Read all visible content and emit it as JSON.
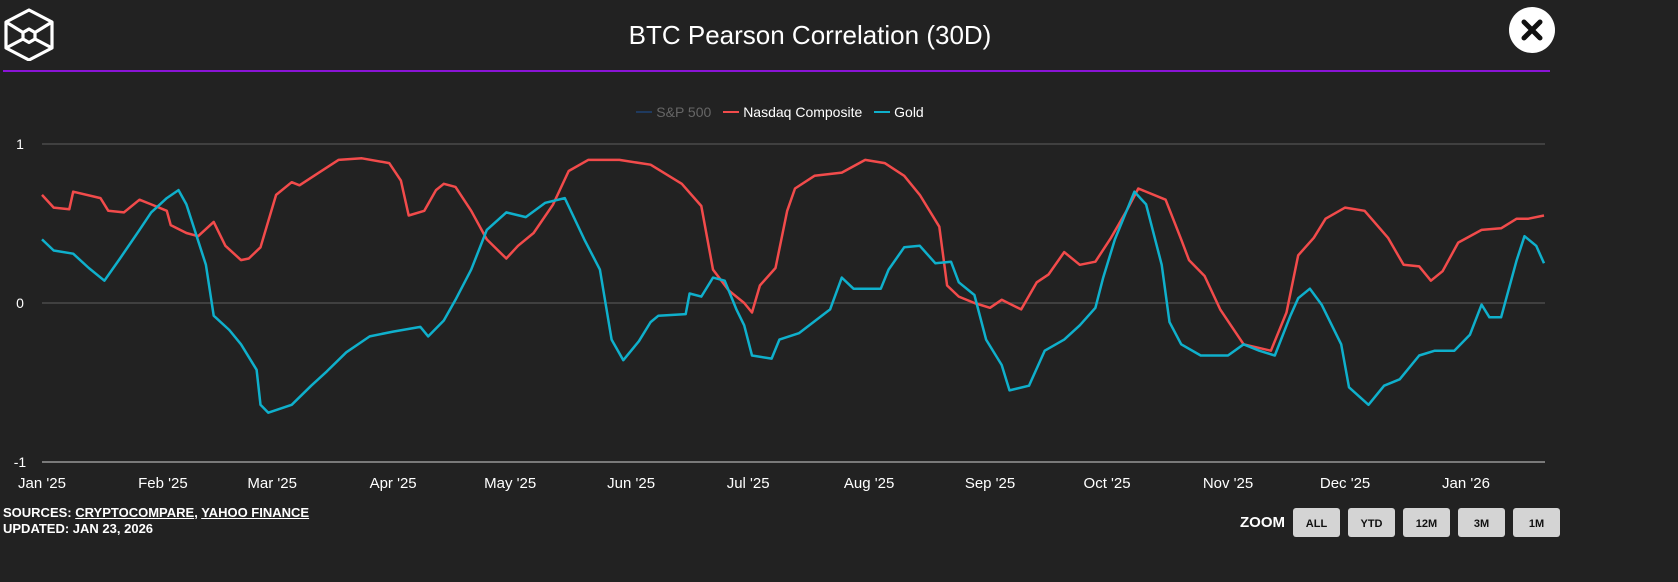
{
  "header": {
    "title": "BTC Pearson Correlation (30D)",
    "logo": "cube-logo",
    "close_icon": "close-icon"
  },
  "footer": {
    "sources_label": "SOURCES:",
    "source_1": "CRYPTOCOMPARE",
    "separator": ",",
    "source_2": "YAHOO FINANCE",
    "updated": "UPDATED: JAN 23, 2026"
  },
  "zoom": {
    "label": "ZOOM",
    "buttons": [
      "ALL",
      "YTD",
      "12M",
      "3M",
      "1M"
    ]
  },
  "colors": {
    "background": "#222222",
    "divider": "#8a14d6",
    "sp500": "#1f3a5f",
    "nasdaq": "#f24b4b",
    "gold": "#0fb0cc",
    "grid": "#444444"
  },
  "chart_data": {
    "type": "line",
    "title": "BTC Pearson Correlation (30D)",
    "xlabel": "",
    "ylabel": "",
    "ylim": [
      -1,
      1
    ],
    "xlim": [
      "2025-01-01",
      "2026-01-21"
    ],
    "grid": true,
    "legend_placement": "top",
    "y_ticks": [
      "1",
      "0",
      "-1"
    ],
    "x_ticks": [
      "Jan '25",
      "Feb '25",
      "Mar '25",
      "Apr '25",
      "May '25",
      "Jun '25",
      "Jul '25",
      "Aug '25",
      "Sep '25",
      "Oct '25",
      "Nov '25",
      "Dec '25",
      "Jan '26"
    ],
    "x_tick_dates": [
      "2025-01-01",
      "2025-02-01",
      "2025-03-01",
      "2025-04-01",
      "2025-05-01",
      "2025-06-01",
      "2025-07-01",
      "2025-08-01",
      "2025-09-01",
      "2025-10-01",
      "2025-11-01",
      "2025-12-01",
      "2026-01-01"
    ],
    "series": [
      {
        "name": "S&P 500",
        "visible": false,
        "points": []
      },
      {
        "name": "Nasdaq Composite",
        "visible": true,
        "points": [
          [
            "2025-01-01",
            0.68
          ],
          [
            "2025-01-04",
            0.6
          ],
          [
            "2025-01-08",
            0.59
          ],
          [
            "2025-01-09",
            0.7
          ],
          [
            "2025-01-16",
            0.66
          ],
          [
            "2025-01-18",
            0.58
          ],
          [
            "2025-01-22",
            0.57
          ],
          [
            "2025-01-26",
            0.65
          ],
          [
            "2025-01-29",
            0.62
          ],
          [
            "2025-02-02",
            0.58
          ],
          [
            "2025-02-03",
            0.49
          ],
          [
            "2025-02-07",
            0.44
          ],
          [
            "2025-02-10",
            0.42
          ],
          [
            "2025-02-14",
            0.51
          ],
          [
            "2025-02-17",
            0.36
          ],
          [
            "2025-02-21",
            0.27
          ],
          [
            "2025-02-23",
            0.28
          ],
          [
            "2025-02-26",
            0.35
          ],
          [
            "2025-03-02",
            0.68
          ],
          [
            "2025-03-06",
            0.76
          ],
          [
            "2025-03-08",
            0.74
          ],
          [
            "2025-03-13",
            0.82
          ],
          [
            "2025-03-18",
            0.9
          ],
          [
            "2025-03-24",
            0.91
          ],
          [
            "2025-03-31",
            0.88
          ],
          [
            "2025-04-03",
            0.77
          ],
          [
            "2025-04-05",
            0.55
          ],
          [
            "2025-04-09",
            0.58
          ],
          [
            "2025-04-12",
            0.71
          ],
          [
            "2025-04-14",
            0.75
          ],
          [
            "2025-04-17",
            0.73
          ],
          [
            "2025-04-21",
            0.58
          ],
          [
            "2025-04-25",
            0.4
          ],
          [
            "2025-04-30",
            0.28
          ],
          [
            "2025-05-03",
            0.36
          ],
          [
            "2025-05-07",
            0.44
          ],
          [
            "2025-05-12",
            0.62
          ],
          [
            "2025-05-16",
            0.83
          ],
          [
            "2025-05-21",
            0.9
          ],
          [
            "2025-05-29",
            0.9
          ],
          [
            "2025-06-06",
            0.87
          ],
          [
            "2025-06-14",
            0.75
          ],
          [
            "2025-06-19",
            0.61
          ],
          [
            "2025-06-22",
            0.21
          ],
          [
            "2025-06-26",
            0.08
          ],
          [
            "2025-06-30",
            0.0
          ],
          [
            "2025-07-02",
            -0.06
          ],
          [
            "2025-07-04",
            0.11
          ],
          [
            "2025-07-08",
            0.22
          ],
          [
            "2025-07-11",
            0.58
          ],
          [
            "2025-07-13",
            0.72
          ],
          [
            "2025-07-18",
            0.8
          ],
          [
            "2025-07-25",
            0.82
          ],
          [
            "2025-07-31",
            0.9
          ],
          [
            "2025-08-05",
            0.88
          ],
          [
            "2025-08-10",
            0.8
          ],
          [
            "2025-08-14",
            0.68
          ],
          [
            "2025-08-19",
            0.48
          ],
          [
            "2025-08-21",
            0.11
          ],
          [
            "2025-08-24",
            0.04
          ],
          [
            "2025-08-28",
            0.0
          ],
          [
            "2025-09-01",
            -0.03
          ],
          [
            "2025-09-04",
            0.02
          ],
          [
            "2025-09-09",
            -0.04
          ],
          [
            "2025-09-13",
            0.13
          ],
          [
            "2025-09-16",
            0.18
          ],
          [
            "2025-09-20",
            0.32
          ],
          [
            "2025-09-24",
            0.24
          ],
          [
            "2025-09-28",
            0.26
          ],
          [
            "2025-10-02",
            0.41
          ],
          [
            "2025-10-06",
            0.58
          ],
          [
            "2025-10-09",
            0.72
          ],
          [
            "2025-10-16",
            0.65
          ],
          [
            "2025-10-20",
            0.4
          ],
          [
            "2025-10-22",
            0.27
          ],
          [
            "2025-10-26",
            0.17
          ],
          [
            "2025-10-30",
            -0.04
          ],
          [
            "2025-11-05",
            -0.26
          ],
          [
            "2025-11-12",
            -0.3
          ],
          [
            "2025-11-16",
            -0.06
          ],
          [
            "2025-11-19",
            0.3
          ],
          [
            "2025-11-23",
            0.41
          ],
          [
            "2025-11-26",
            0.53
          ],
          [
            "2025-12-01",
            0.6
          ],
          [
            "2025-12-06",
            0.58
          ],
          [
            "2025-12-12",
            0.41
          ],
          [
            "2025-12-16",
            0.24
          ],
          [
            "2025-12-20",
            0.23
          ],
          [
            "2025-12-23",
            0.14
          ],
          [
            "2025-12-26",
            0.2
          ],
          [
            "2025-12-30",
            0.38
          ],
          [
            "2026-01-05",
            0.46
          ],
          [
            "2026-01-10",
            0.47
          ],
          [
            "2026-01-14",
            0.53
          ],
          [
            "2026-01-17",
            0.53
          ],
          [
            "2026-01-21",
            0.55
          ]
        ]
      },
      {
        "name": "Gold",
        "visible": true,
        "points": [
          [
            "2025-01-01",
            0.4
          ],
          [
            "2025-01-04",
            0.33
          ],
          [
            "2025-01-09",
            0.31
          ],
          [
            "2025-01-13",
            0.22
          ],
          [
            "2025-01-17",
            0.14
          ],
          [
            "2025-01-21",
            0.28
          ],
          [
            "2025-01-26",
            0.46
          ],
          [
            "2025-01-29",
            0.57
          ],
          [
            "2025-02-02",
            0.66
          ],
          [
            "2025-02-05",
            0.71
          ],
          [
            "2025-02-07",
            0.62
          ],
          [
            "2025-02-12",
            0.24
          ],
          [
            "2025-02-14",
            -0.08
          ],
          [
            "2025-02-18",
            -0.17
          ],
          [
            "2025-02-21",
            -0.26
          ],
          [
            "2025-02-25",
            -0.42
          ],
          [
            "2025-02-26",
            -0.64
          ],
          [
            "2025-02-28",
            -0.69
          ],
          [
            "2025-03-06",
            -0.64
          ],
          [
            "2025-03-11",
            -0.52
          ],
          [
            "2025-03-15",
            -0.43
          ],
          [
            "2025-03-20",
            -0.31
          ],
          [
            "2025-03-26",
            -0.21
          ],
          [
            "2025-04-01",
            -0.18
          ],
          [
            "2025-04-08",
            -0.15
          ],
          [
            "2025-04-10",
            -0.21
          ],
          [
            "2025-04-14",
            -0.11
          ],
          [
            "2025-04-17",
            0.02
          ],
          [
            "2025-04-21",
            0.21
          ],
          [
            "2025-04-25",
            0.46
          ],
          [
            "2025-04-30",
            0.57
          ],
          [
            "2025-05-05",
            0.54
          ],
          [
            "2025-05-10",
            0.63
          ],
          [
            "2025-05-15",
            0.66
          ],
          [
            "2025-05-20",
            0.4
          ],
          [
            "2025-05-24",
            0.21
          ],
          [
            "2025-05-27",
            -0.23
          ],
          [
            "2025-05-30",
            -0.36
          ],
          [
            "2025-06-03",
            -0.24
          ],
          [
            "2025-06-06",
            -0.12
          ],
          [
            "2025-06-08",
            -0.08
          ],
          [
            "2025-06-15",
            -0.07
          ],
          [
            "2025-06-16",
            0.06
          ],
          [
            "2025-06-19",
            0.04
          ],
          [
            "2025-06-22",
            0.16
          ],
          [
            "2025-06-25",
            0.14
          ],
          [
            "2025-06-28",
            -0.04
          ],
          [
            "2025-06-30",
            -0.14
          ],
          [
            "2025-07-02",
            -0.33
          ],
          [
            "2025-07-07",
            -0.35
          ],
          [
            "2025-07-09",
            -0.23
          ],
          [
            "2025-07-14",
            -0.19
          ],
          [
            "2025-07-22",
            -0.04
          ],
          [
            "2025-07-25",
            0.16
          ],
          [
            "2025-07-28",
            0.09
          ],
          [
            "2025-08-04",
            0.09
          ],
          [
            "2025-08-06",
            0.21
          ],
          [
            "2025-08-10",
            0.35
          ],
          [
            "2025-08-14",
            0.36
          ],
          [
            "2025-08-18",
            0.25
          ],
          [
            "2025-08-22",
            0.26
          ],
          [
            "2025-08-24",
            0.13
          ],
          [
            "2025-08-28",
            0.05
          ],
          [
            "2025-08-31",
            -0.23
          ],
          [
            "2025-09-04",
            -0.39
          ],
          [
            "2025-09-06",
            -0.55
          ],
          [
            "2025-09-11",
            -0.52
          ],
          [
            "2025-09-15",
            -0.3
          ],
          [
            "2025-09-20",
            -0.23
          ],
          [
            "2025-09-24",
            -0.14
          ],
          [
            "2025-09-28",
            -0.03
          ],
          [
            "2025-09-30",
            0.16
          ],
          [
            "2025-10-03",
            0.4
          ],
          [
            "2025-10-06",
            0.58
          ],
          [
            "2025-10-08",
            0.7
          ],
          [
            "2025-10-11",
            0.62
          ],
          [
            "2025-10-15",
            0.24
          ],
          [
            "2025-10-17",
            -0.12
          ],
          [
            "2025-10-20",
            -0.26
          ],
          [
            "2025-10-25",
            -0.33
          ],
          [
            "2025-11-01",
            -0.33
          ],
          [
            "2025-11-05",
            -0.26
          ],
          [
            "2025-11-09",
            -0.3
          ],
          [
            "2025-11-13",
            -0.33
          ],
          [
            "2025-11-17",
            -0.08
          ],
          [
            "2025-11-19",
            0.03
          ],
          [
            "2025-11-22",
            0.09
          ],
          [
            "2025-11-25",
            -0.01
          ],
          [
            "2025-11-30",
            -0.26
          ],
          [
            "2025-12-02",
            -0.53
          ],
          [
            "2025-12-07",
            -0.64
          ],
          [
            "2025-12-11",
            -0.52
          ],
          [
            "2025-12-15",
            -0.48
          ],
          [
            "2025-12-20",
            -0.33
          ],
          [
            "2025-12-24",
            -0.3
          ],
          [
            "2025-12-29",
            -0.3
          ],
          [
            "2026-01-02",
            -0.2
          ],
          [
            "2026-01-05",
            -0.01
          ],
          [
            "2026-01-07",
            -0.09
          ],
          [
            "2026-01-10",
            -0.09
          ],
          [
            "2026-01-14",
            0.27
          ],
          [
            "2026-01-16",
            0.42
          ],
          [
            "2026-01-19",
            0.36
          ],
          [
            "2026-01-21",
            0.25
          ]
        ]
      }
    ]
  }
}
